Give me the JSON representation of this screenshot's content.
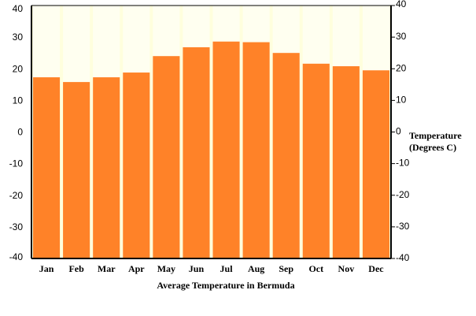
{
  "chart_data": {
    "type": "bar",
    "title": "",
    "xlabel": "Average Temperature in Bermuda",
    "ylabel_right": [
      "Temperature",
      "(Degrees C)"
    ],
    "categories": [
      "Jan",
      "Feb",
      "Mar",
      "Apr",
      "May",
      "Jun",
      "Jul",
      "Aug",
      "Sep",
      "Oct",
      "Nov",
      "Dec"
    ],
    "series": [
      {
        "values": [
          17.3,
          15.8,
          17.3,
          18.8,
          24.0,
          26.8,
          28.6,
          28.4,
          25.0,
          21.6,
          20.8,
          19.5
        ]
      }
    ],
    "ylim": [
      -40,
      40
    ],
    "yticks": [
      -40,
      -30,
      -20,
      -10,
      0,
      10,
      20,
      30,
      40
    ],
    "colors": {
      "bar": "#ff8228",
      "plot_background": "#ffffdd",
      "column_background": "#fffff0",
      "axis": "#000000"
    },
    "grid": false,
    "legend": "none"
  }
}
